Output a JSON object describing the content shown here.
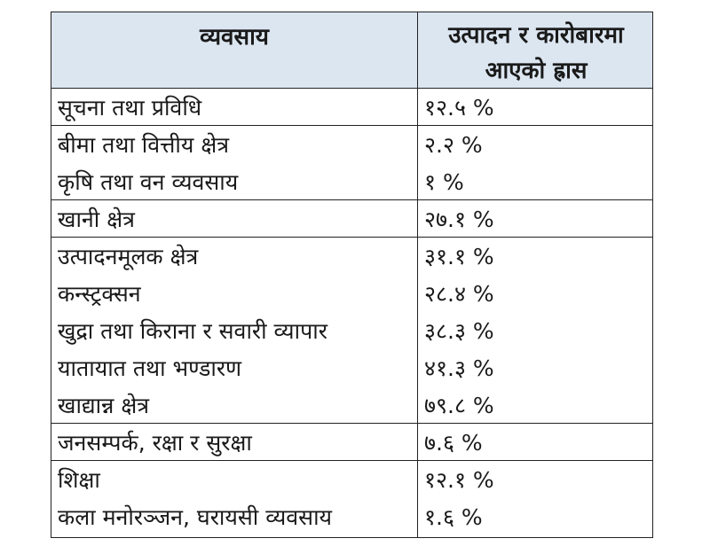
{
  "table": {
    "header": {
      "col1": "व्यवसाय",
      "col2_line1": "उत्पादन र कारोबारमा",
      "col2_line2": "आएको ह्रास"
    },
    "groups": [
      [
        {
          "sector": "सूचना तथा प्रविधि",
          "decline": "१२.५ %"
        }
      ],
      [
        {
          "sector": "बीमा तथा वित्तीय क्षेत्र",
          "decline": "२.२ %"
        },
        {
          "sector": "कृषि तथा वन व्यवसाय",
          "decline": "१ %"
        }
      ],
      [
        {
          "sector": "खानी क्षेत्र",
          "decline": "२७.१ %"
        }
      ],
      [
        {
          "sector": "उत्पादनमूलक क्षेत्र",
          "decline": "३१.१ %"
        },
        {
          "sector": "कन्स्ट्रक्सन",
          "decline": "२८.४ %"
        },
        {
          "sector": "खुद्रा तथा किराना र सवारी व्यापार",
          "decline": "३८.३ %"
        },
        {
          "sector": "यातायात तथा भण्डारण",
          "decline": "४१.३ %"
        },
        {
          "sector": "खाद्यान्न क्षेत्र",
          "decline": "७९.८ %"
        }
      ],
      [
        {
          "sector": "जनसम्पर्क, रक्षा र सुरक्षा",
          "decline": "७.६ %"
        }
      ],
      [
        {
          "sector": "शिक्षा",
          "decline": "१२.१ %"
        },
        {
          "sector": "कला मनोरञ्जन, घरायसी व्यवसाय",
          "decline": "१.६ %"
        }
      ]
    ]
  }
}
